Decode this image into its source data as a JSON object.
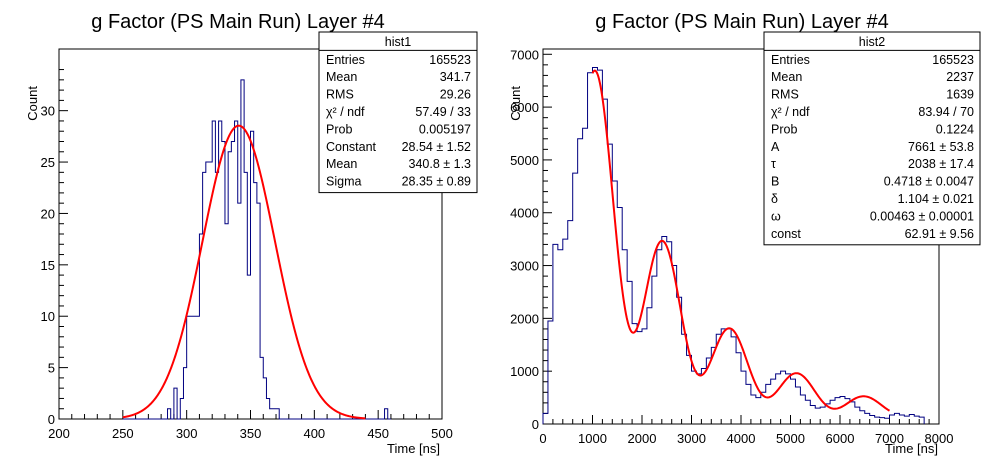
{
  "chart_data": [
    {
      "type": "bar",
      "title": "g Factor (PS Main Run) Layer #4",
      "xlabel": "Time [ns]",
      "ylabel": "Count",
      "xlim": [
        200,
        500
      ],
      "ylim": [
        0,
        36
      ],
      "xticks": [
        200,
        250,
        300,
        350,
        400,
        450,
        500
      ],
      "xtick_labels": [
        "200",
        "250",
        "300",
        "350",
        "400",
        "450",
        "500"
      ],
      "yticks": [
        0,
        5,
        10,
        15,
        20,
        25,
        30
      ],
      "ytick_labels": [
        "0",
        "5",
        "10",
        "15",
        "20",
        "25",
        "30"
      ],
      "bin_edges_start": 250,
      "bin_width": 2.5,
      "histogram_values": [
        0,
        0,
        0,
        0,
        0,
        0,
        0,
        0,
        0,
        0,
        0,
        0,
        0,
        0,
        1,
        0,
        3,
        0,
        2,
        5,
        10,
        10,
        10,
        10,
        18,
        24,
        25,
        25,
        29,
        24,
        29,
        27,
        19,
        26,
        27,
        29,
        21,
        33,
        24,
        14,
        28,
        23,
        21,
        6,
        4,
        2,
        1,
        1,
        1,
        0,
        0,
        0,
        0,
        0,
        0,
        0,
        0,
        0,
        0,
        0,
        0,
        0,
        0,
        0,
        0,
        0,
        0,
        0,
        0,
        0,
        0,
        0,
        0,
        0,
        0,
        0,
        0,
        0,
        0,
        0,
        0,
        0,
        1,
        0
      ],
      "series": [
        {
          "name": "",
          "kind": "histogram"
        },
        {
          "name": "",
          "kind": "gaussian-fit",
          "color": "#ff0000",
          "constant": 28.54,
          "mean": 340.8,
          "sigma": 28.35,
          "range": [
            250,
            440
          ]
        }
      ],
      "stats_box": {
        "title": "hist1",
        "rows": [
          {
            "label": "Entries",
            "value": "165523"
          },
          {
            "label": "Mean",
            "value": "341.7"
          },
          {
            "label": "RMS",
            "value": "29.26"
          },
          {
            "label": "χ² / ndf",
            "value": "57.49 / 33"
          },
          {
            "label": "Prob",
            "value": "0.005197"
          },
          {
            "label": "Constant",
            "value": "28.54 ± 1.52"
          },
          {
            "label": "Mean",
            "value": "340.8 ± 1.3"
          },
          {
            "label": "Sigma",
            "value": "28.35 ± 0.89"
          }
        ]
      }
    },
    {
      "type": "bar",
      "title": "g Factor (PS Main Run) Layer #4",
      "xlabel": "Time [ns]",
      "ylabel": "Count",
      "xlim": [
        0,
        8000
      ],
      "ylim": [
        0,
        7100
      ],
      "xticks": [
        0,
        1000,
        2000,
        3000,
        4000,
        5000,
        6000,
        7000,
        8000
      ],
      "xtick_labels": [
        "0",
        "1000",
        "2000",
        "3000",
        "4000",
        "5000",
        "6000",
        "7000",
        "8000"
      ],
      "yticks": [
        0,
        1000,
        2000,
        3000,
        4000,
        5000,
        6000,
        7000
      ],
      "ytick_labels": [
        "0",
        "1000",
        "2000",
        "3000",
        "4000",
        "5000",
        "6000",
        "7000"
      ],
      "bin_edges_start": 0,
      "bin_width": 100,
      "histogram_values": [
        200,
        1950,
        3400,
        3300,
        3500,
        3850,
        4750,
        5400,
        5600,
        6650,
        6750,
        6700,
        6150,
        5300,
        4600,
        4100,
        3300,
        2700,
        1900,
        1750,
        1800,
        2200,
        2800,
        3300,
        3550,
        3450,
        3000,
        2400,
        1700,
        1300,
        1000,
        950,
        1050,
        1250,
        1450,
        1700,
        1800,
        1800,
        1650,
        1350,
        1000,
        750,
        550,
        500,
        600,
        750,
        850,
        950,
        1000,
        950,
        850,
        700,
        550,
        450,
        350,
        300,
        320,
        380,
        450,
        500,
        520,
        480,
        420,
        320,
        250,
        200,
        160,
        130,
        120,
        110,
        170,
        200,
        170,
        150,
        180,
        150,
        130
      ],
      "series": [
        {
          "name": "",
          "kind": "histogram"
        },
        {
          "name": "",
          "kind": "fit",
          "color": "#ff0000",
          "A": 7661,
          "tau": 2038,
          "B": 0.4718,
          "delta": 1.104,
          "omega": 0.00463,
          "const": 62.91,
          "range": [
            1000,
            7000
          ]
        }
      ],
      "stats_box": {
        "title": "hist2",
        "rows": [
          {
            "label": "Entries",
            "value": "165523"
          },
          {
            "label": "Mean",
            "value": "2237"
          },
          {
            "label": "RMS",
            "value": "1639"
          },
          {
            "label": "χ² / ndf",
            "value": "83.94 / 70"
          },
          {
            "label": "Prob",
            "value": "0.1224"
          },
          {
            "label": "A",
            "value": "7661 ± 53.8"
          },
          {
            "label": "τ",
            "value": "2038 ± 17.4"
          },
          {
            "label": "B",
            "value": "0.4718 ± 0.0047"
          },
          {
            "label": "δ",
            "value": "1.104 ± 0.021"
          },
          {
            "label": "ω",
            "value": "0.00463 ± 0.00001"
          },
          {
            "label": "const",
            "value": "62.91 ± 9.56"
          }
        ]
      }
    }
  ]
}
